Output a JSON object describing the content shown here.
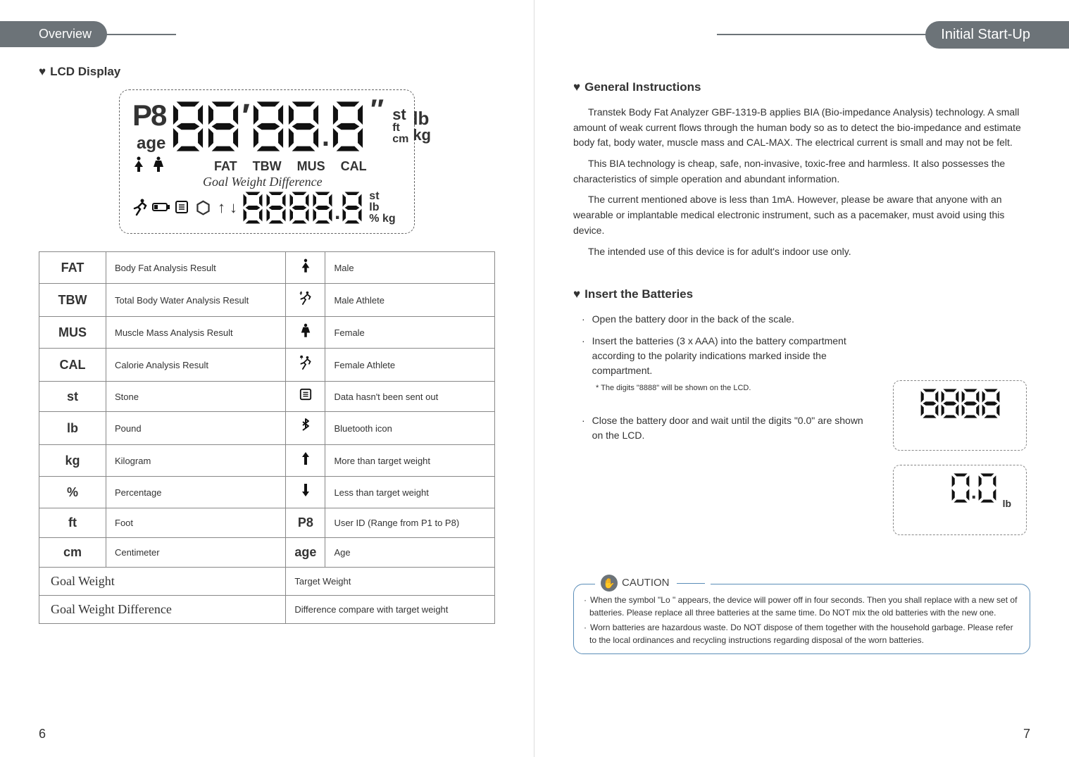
{
  "left": {
    "tab": "Overview",
    "section": "LCD Display",
    "lcd": {
      "p_label": "P8",
      "age_label": "age",
      "tick": "′",
      "dtick": "″",
      "units_top": {
        "st": "st",
        "ft": "ft",
        "cm": "cm",
        "lb": "lb",
        "kg": "kg"
      },
      "row_labels": [
        "FAT",
        "TBW",
        "MUS",
        "CAL"
      ],
      "gwd": "Goal Weight Difference",
      "units_bottom": {
        "st": "st",
        "lb": "lb",
        "pctkg": "% kg"
      }
    },
    "table": [
      {
        "sym": "FAT",
        "desc": "Body Fat Analysis Result",
        "icon": "male",
        "icon_desc": "Male"
      },
      {
        "sym": "TBW",
        "desc": "Total Body Water Analysis Result",
        "icon": "male-ath",
        "icon_desc": "Male Athlete"
      },
      {
        "sym": "MUS",
        "desc": "Muscle Mass Analysis Result",
        "icon": "female",
        "icon_desc": "Female"
      },
      {
        "sym": "CAL",
        "desc": "Calorie Analysis Result",
        "icon": "female-ath",
        "icon_desc": "Female Athlete"
      },
      {
        "sym": "st",
        "desc": "Stone",
        "icon": "data",
        "icon_desc": "Data hasn't been sent out"
      },
      {
        "sym": "lb",
        "desc": "Pound",
        "icon": "bt",
        "icon_desc": "Bluetooth icon"
      },
      {
        "sym": "kg",
        "desc": "Kilogram",
        "icon": "up",
        "icon_desc": "More than target weight"
      },
      {
        "sym": "%",
        "desc": "Percentage",
        "icon": "down",
        "icon_desc": "Less than target weight"
      },
      {
        "sym": "ft",
        "desc": "Foot",
        "icon": "p8",
        "icon_desc": "User ID (Range from P1 to P8)"
      },
      {
        "sym": "cm",
        "desc": "Centimeter",
        "icon": "age",
        "icon_desc": "Age"
      }
    ],
    "table_footer": [
      {
        "sym": "Goal Weight",
        "desc": "Target Weight"
      },
      {
        "sym": "Goal Weight Difference",
        "desc": "Difference compare with target weight"
      }
    ],
    "page_num": "6"
  },
  "right": {
    "tab": "Initial Start-Up",
    "sec1": "General Instructions",
    "para1": "Transtek Body Fat Analyzer GBF-1319-B applies BIA (Bio-impedance Analysis) technology. A small amount of weak current flows through the human body so as to detect the bio-impedance and estimate body fat, body water, muscle mass and CAL-MAX. The electrical current is small and may not be felt.",
    "para2": "This BIA technology is cheap, safe, non-invasive, toxic-free and harmless. It also possesses the characteristics of simple operation and abundant information.",
    "para3": "The current mentioned above is less than 1mA. However, please be aware that anyone with an wearable or implantable medical electronic instrument, such as a pacemaker, must avoid using this device.",
    "para4": "The intended use of this device is for adult's indoor use only.",
    "sec2": "Insert the Batteries",
    "b1": "Open the battery door in the back of the scale.",
    "b2": "Insert the batteries (3 x AAA) into the battery compartment according to the polarity indications marked inside the compartment.",
    "b2_note": "* The digits \"8888\" will be shown on the LCD.",
    "b3": "Close the battery door and wait until the digits \"0.0\" are shown on the LCD.",
    "mini1": "8888",
    "mini2": "0.0",
    "mini2_unit": "lb",
    "caution_label": "CAUTION",
    "caution1": "When the symbol \"Lo \" appears, the device will power off in four seconds. Then you shall replace with a new set of batteries. Please replace all three batteries at the same time. Do NOT mix the old batteries with the new one.",
    "caution2": "Worn batteries are hazardous waste. Do NOT dispose of them together with the household garbage. Please refer to the local ordinances and recycling instructions regarding disposal of the worn batteries.",
    "page_num": "7"
  }
}
